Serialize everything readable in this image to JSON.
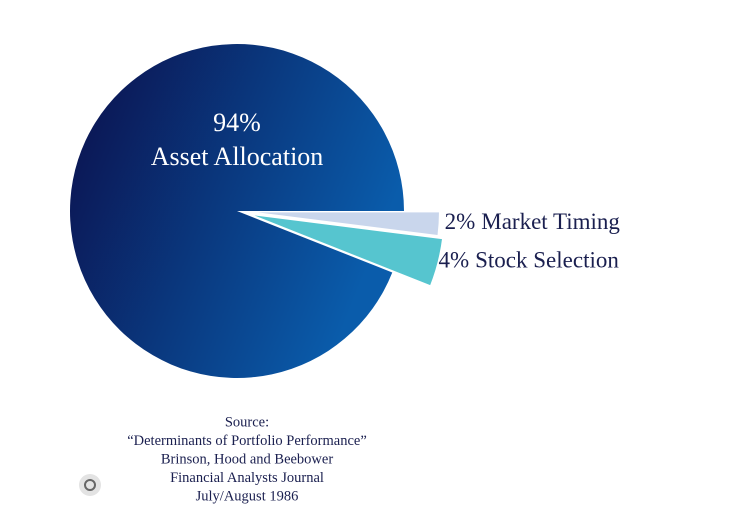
{
  "chart_data": {
    "type": "pie",
    "categories": [
      "Asset Allocation",
      "Market Timing",
      "Stock Selection"
    ],
    "values": [
      94,
      2,
      4
    ],
    "value_labels": [
      "94%",
      "2%",
      "4%"
    ],
    "colors": [
      "#0a5cab",
      "#c9d6ec",
      "#56c5cf"
    ],
    "source": [
      "Source:",
      "“Determinants of Portfolio Performance”",
      "Brinson, Hood and Beebower",
      "Financial Analysts Journal",
      "July/August 1986"
    ]
  }
}
